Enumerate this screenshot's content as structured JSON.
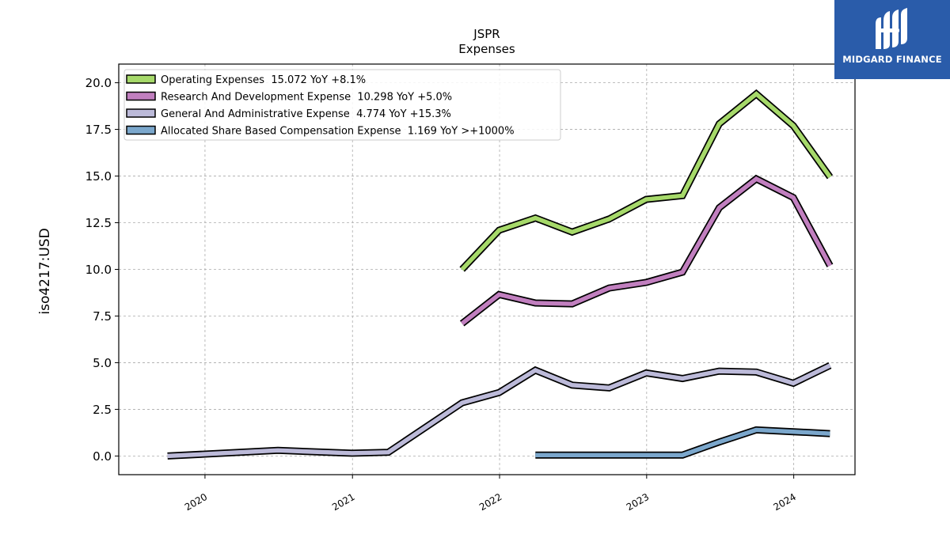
{
  "brand": {
    "name": "MIDGARD FINANCE",
    "color": "#2a5caa",
    "icon": "midgard-logo-icon"
  },
  "chart_data": {
    "type": "line",
    "title": "JSPR",
    "subtitle": "Expenses",
    "ylabel": "iso4217:USD",
    "xlabel": "",
    "ylim": [
      -1.0,
      21.0
    ],
    "xlim": [
      "2019-06-01",
      "2024-06-01"
    ],
    "x_ticks": [
      "2020",
      "2021",
      "2022",
      "2023",
      "2024"
    ],
    "y_ticks": [
      "0.0",
      "2.5",
      "5.0",
      "7.5",
      "10.0",
      "12.5",
      "15.0",
      "17.5",
      "20.0"
    ],
    "grid": true,
    "legend_position": "top-left",
    "series": [
      {
        "name": "Operating Expenses  15.072 YoY +8.1%",
        "color": "#a6d96a",
        "points": [
          [
            "2021-09-30",
            10.0
          ],
          [
            "2021-12-31",
            12.1
          ],
          [
            "2022-03-31",
            12.75
          ],
          [
            "2022-06-30",
            12.0
          ],
          [
            "2022-09-30",
            12.7
          ],
          [
            "2022-12-31",
            13.75
          ],
          [
            "2023-03-31",
            13.95
          ],
          [
            "2023-06-30",
            17.8
          ],
          [
            "2023-09-30",
            19.4
          ],
          [
            "2023-12-31",
            17.7
          ],
          [
            "2024-03-31",
            14.95
          ]
        ]
      },
      {
        "name": "Research And Development Expense  10.298 YoY +5.0%",
        "color": "#c17fbf",
        "points": [
          [
            "2021-09-30",
            7.1
          ],
          [
            "2021-12-31",
            8.65
          ],
          [
            "2022-03-31",
            8.2
          ],
          [
            "2022-06-30",
            8.15
          ],
          [
            "2022-09-30",
            9.0
          ],
          [
            "2022-12-31",
            9.3
          ],
          [
            "2023-03-31",
            9.85
          ],
          [
            "2023-06-30",
            13.3
          ],
          [
            "2023-09-30",
            14.85
          ],
          [
            "2023-12-31",
            13.85
          ],
          [
            "2024-03-31",
            10.2
          ]
        ]
      },
      {
        "name": "General And Administrative Expense  4.774 YoY +15.3%",
        "color": "#bcbad9",
        "points": [
          [
            "2019-09-30",
            0.0
          ],
          [
            "2020-06-30",
            0.3
          ],
          [
            "2020-12-31",
            0.15
          ],
          [
            "2021-03-31",
            0.2
          ],
          [
            "2021-09-30",
            2.85
          ],
          [
            "2021-12-31",
            3.4
          ],
          [
            "2022-03-31",
            4.6
          ],
          [
            "2022-06-30",
            3.8
          ],
          [
            "2022-09-30",
            3.65
          ],
          [
            "2022-12-31",
            4.45
          ],
          [
            "2023-03-31",
            4.15
          ],
          [
            "2023-06-30",
            4.55
          ],
          [
            "2023-09-30",
            4.5
          ],
          [
            "2023-12-31",
            3.9
          ],
          [
            "2024-03-31",
            4.85
          ]
        ]
      },
      {
        "name": "Allocated Share Based Compensation Expense  1.169 YoY >+1000%",
        "color": "#7ba7cc",
        "points": [
          [
            "2022-03-31",
            0.05
          ],
          [
            "2022-06-30",
            0.05
          ],
          [
            "2022-09-30",
            0.05
          ],
          [
            "2022-12-31",
            0.05
          ],
          [
            "2023-03-31",
            0.05
          ],
          [
            "2023-06-30",
            0.75
          ],
          [
            "2023-09-30",
            1.4
          ],
          [
            "2023-12-31",
            1.3
          ],
          [
            "2024-03-31",
            1.2
          ]
        ]
      }
    ]
  }
}
